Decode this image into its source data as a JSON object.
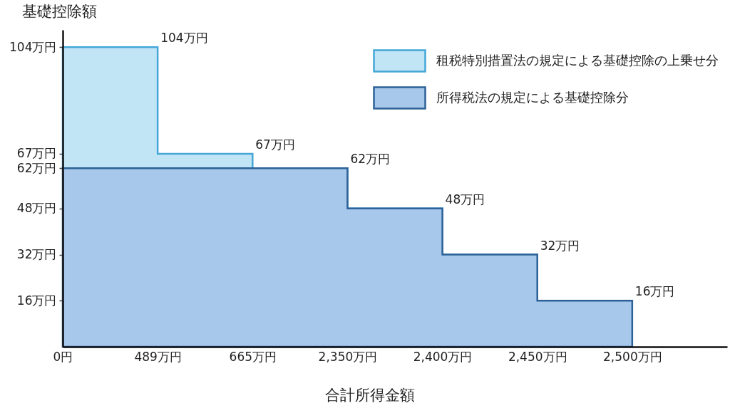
{
  "chart_data": {
    "type": "area",
    "xlabel": "合計所得金額",
    "ylabel": "基礎控除額",
    "categories": [
      "0円",
      "489万円",
      "665万円",
      "2,350万円",
      "2,400万円",
      "2,450万円",
      "2,500万円"
    ],
    "series": [
      {
        "name": "所得税法の規定による基礎控除分",
        "color": "#a7c8eb",
        "values": [
          62,
          62,
          62,
          62,
          48,
          32,
          16
        ]
      },
      {
        "name": "租税特別措置法の規定による基礎控除の上乗せ分",
        "color": "#c2e5f6",
        "values": [
          42,
          42,
          5,
          0,
          0,
          0,
          0
        ]
      }
    ],
    "stacked": true,
    "totals": [
      null,
      "104万円",
      "67万円",
      "62万円",
      "48万円",
      "32万円",
      "16万円"
    ],
    "ylim": [
      0,
      110
    ],
    "yticks": [
      {
        "value": 16,
        "label": "16万円"
      },
      {
        "value": 32,
        "label": "32万円"
      },
      {
        "value": 48,
        "label": "48万円"
      },
      {
        "value": 62,
        "label": "62万円"
      },
      {
        "value": 67,
        "label": "67万円"
      },
      {
        "value": 104,
        "label": "104万円"
      }
    ],
    "legend": "top right"
  }
}
